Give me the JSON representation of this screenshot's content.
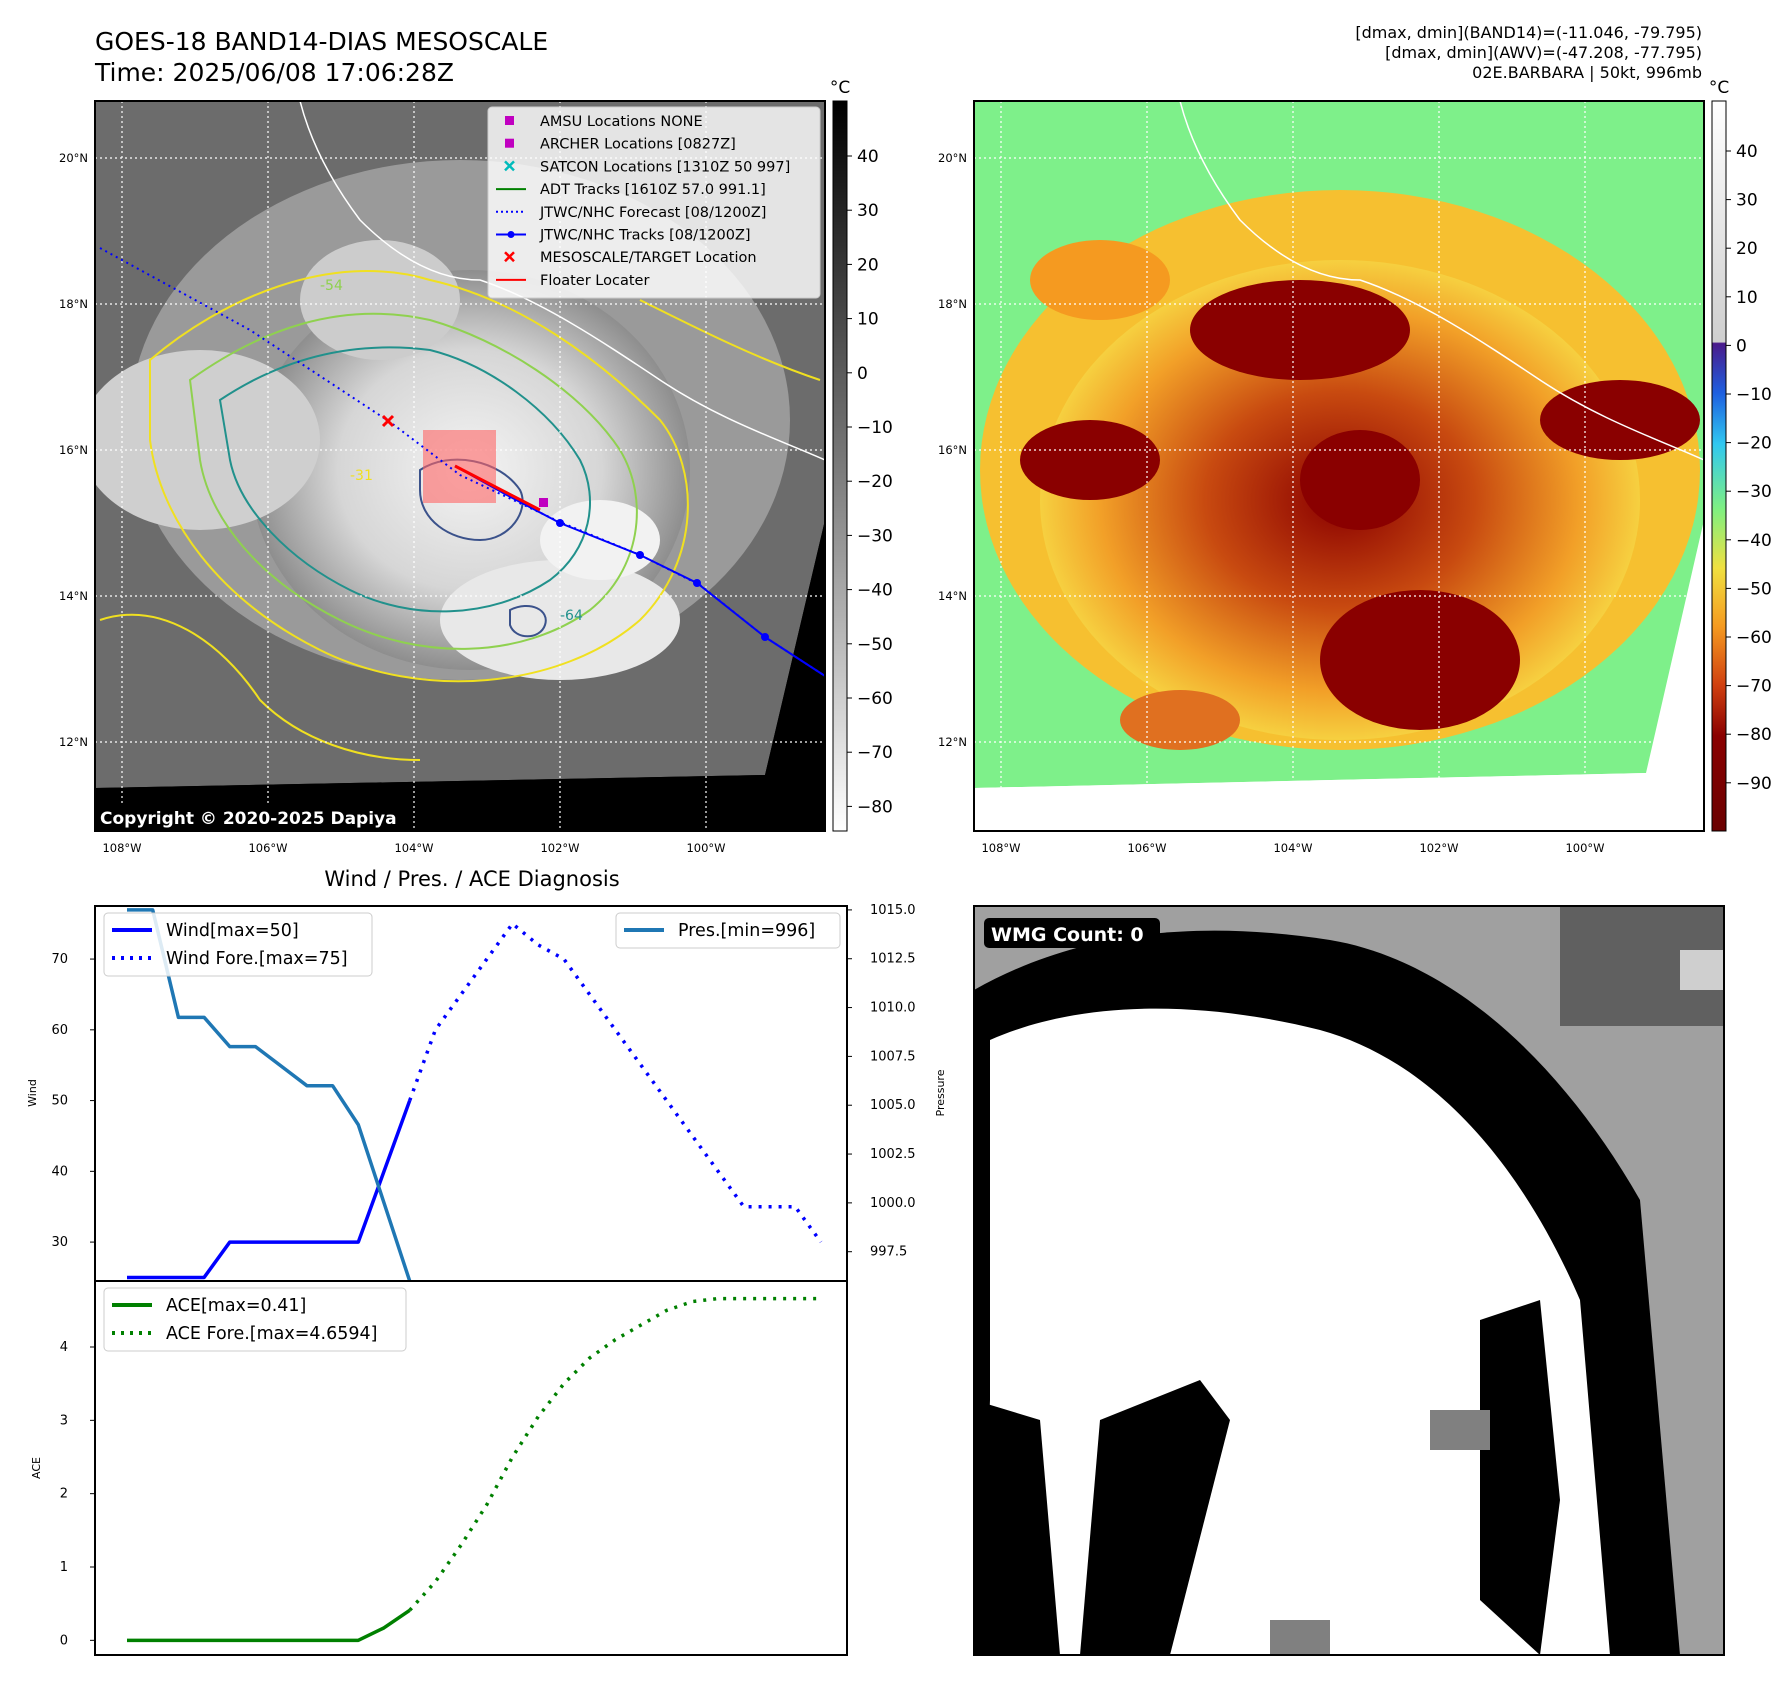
{
  "header": {
    "title": "GOES-18 BAND14-DIAS MESOSCALE",
    "time": "Time: 2025/06/08 17:06:28Z",
    "info_line1": "[dmax, dmin](BAND14)=(-11.046, -79.795)",
    "info_line2": "[dmax, dmin](AWV)=(-47.208, -77.795)",
    "info_line3": "02E.BARBARA | 50kt, 996mb"
  },
  "map": {
    "lat_labels": [
      "20°N",
      "18°N",
      "16°N",
      "14°N",
      "12°N"
    ],
    "lon_labels": [
      "108°W",
      "106°W",
      "104°W",
      "102°W",
      "100°W"
    ],
    "copyright": "Copyright © 2020-2025 Dapiya",
    "contour_labels": [
      "-31",
      "-54",
      "-64"
    ],
    "legend": [
      {
        "label": "AMSU Locations NONE",
        "color": "#c000c0",
        "marker": "square"
      },
      {
        "label": "ARCHER Locations [0827Z]",
        "color": "#c000c0",
        "marker": "square"
      },
      {
        "label": "SATCON Locations [1310Z 50 997]",
        "color": "#00bbbb",
        "marker": "x"
      },
      {
        "label": "ADT Tracks [1610Z 57.0 991.1]",
        "color": "#008000",
        "marker": "line"
      },
      {
        "label": "JTWC/NHC Forecast [08/1200Z]",
        "color": "#0000ff",
        "marker": "dotted"
      },
      {
        "label": "JTWC/NHC Tracks [08/1200Z]",
        "color": "#0000ff",
        "marker": "line-dot"
      },
      {
        "label": "MESOSCALE/TARGET Location",
        "color": "#ff0000",
        "marker": "x"
      },
      {
        "label": "Floater Locater",
        "color": "#ff0000",
        "marker": "line"
      }
    ]
  },
  "colorbar1": {
    "unit": "°C",
    "ticks": [
      "40",
      "30",
      "20",
      "10",
      "0",
      "−10",
      "−20",
      "−30",
      "−40",
      "−50",
      "−60",
      "−70",
      "−80"
    ]
  },
  "colorbar2": {
    "unit": "°C",
    "ticks": [
      "40",
      "30",
      "20",
      "10",
      "0",
      "−10",
      "−20",
      "−30",
      "−40",
      "−50",
      "−60",
      "−70",
      "−80",
      "−90"
    ]
  },
  "diagnosis": {
    "title": "Wind / Pres. / ACE Diagnosis",
    "wind_ylabel": "Wind",
    "pres_ylabel": "Pressure",
    "ace_ylabel": "ACE",
    "wind_ticks": [
      "70",
      "60",
      "50",
      "40",
      "30"
    ],
    "pres_ticks": [
      "1015.0",
      "1012.5",
      "1010.0",
      "1007.5",
      "1005.0",
      "1002.5",
      "1000.0",
      "997.5"
    ],
    "ace_ticks": [
      "4",
      "3",
      "2",
      "1",
      "0"
    ],
    "legend_wind": "Wind[max=50]",
    "legend_wind_fore": "Wind Fore.[max=75]",
    "legend_pres": "Pres.[min=996]",
    "legend_ace": "ACE[max=0.41]",
    "legend_ace_fore": "ACE Fore.[max=4.6594]"
  },
  "wmg": {
    "label": "WMG Count: 0"
  },
  "chart_data": [
    {
      "type": "line",
      "title": "Wind / Pres. / ACE Diagnosis",
      "ylabel": "Wind",
      "ylim": [
        24.5,
        77.5
      ],
      "series": [
        {
          "name": "Wind[max=50]",
          "color": "#0000ff",
          "style": "solid",
          "x": [
            0,
            1,
            2,
            3,
            4,
            5,
            6,
            7,
            8,
            9,
            10,
            11
          ],
          "values": [
            25,
            25,
            25,
            25,
            30,
            30,
            30,
            30,
            30,
            30,
            40,
            50
          ]
        },
        {
          "name": "Wind Fore.[max=75]",
          "color": "#0000ff",
          "style": "dotted",
          "x": [
            11,
            12,
            13,
            14,
            15,
            16,
            17,
            18,
            19,
            20,
            21,
            22,
            23,
            24,
            25,
            26,
            27
          ],
          "values": [
            50,
            60,
            65,
            70,
            75,
            72,
            70,
            65,
            60,
            55,
            50,
            45,
            40,
            35,
            35,
            35,
            30
          ]
        }
      ]
    },
    {
      "type": "line",
      "ylabel": "Pressure",
      "ylim": [
        996.0,
        1015.2
      ],
      "series": [
        {
          "name": "Pres.[min=996]",
          "color": "#1f77b4",
          "style": "solid",
          "x": [
            0,
            1,
            2,
            3,
            4,
            5,
            6,
            7,
            8,
            9,
            10,
            11
          ],
          "values": [
            1015,
            1015,
            1009.5,
            1009.5,
            1008,
            1008,
            1007,
            1006,
            1006,
            1004,
            1000,
            996
          ]
        }
      ]
    },
    {
      "type": "line",
      "ylabel": "ACE",
      "ylim": [
        -0.2,
        4.9
      ],
      "series": [
        {
          "name": "ACE[max=0.41]",
          "color": "#008000",
          "style": "solid",
          "x": [
            0,
            1,
            2,
            3,
            4,
            5,
            6,
            7,
            8,
            9,
            10,
            11
          ],
          "values": [
            0,
            0,
            0,
            0,
            0,
            0,
            0,
            0,
            0,
            0,
            0.17,
            0.41
          ]
        },
        {
          "name": "ACE Fore.[max=4.6594]",
          "color": "#008000",
          "style": "dotted",
          "x": [
            11,
            12,
            13,
            14,
            15,
            16,
            17,
            18,
            19,
            20,
            21,
            22,
            23,
            24,
            25,
            26,
            27
          ],
          "values": [
            0.41,
            0.8,
            1.3,
            1.85,
            2.5,
            3.05,
            3.5,
            3.85,
            4.1,
            4.3,
            4.5,
            4.62,
            4.66,
            4.66,
            4.66,
            4.66,
            4.66
          ]
        }
      ]
    }
  ]
}
